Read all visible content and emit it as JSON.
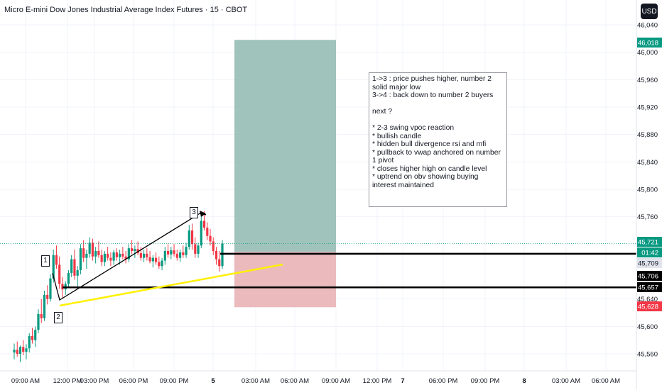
{
  "header": {
    "title": "Micro E-mini Dow Jones Industrial Average Index Futures · 15 · CBOT",
    "currency_button": "USD"
  },
  "chart_data": {
    "type": "candlestick",
    "symbol": "Micro E-mini Dow Jones Industrial Average Index Futures",
    "interval": "15",
    "exchange": "CBOT",
    "currency": "USD",
    "y_axis": {
      "ticks": [
        "46,040",
        "46,000",
        "45,960",
        "45,920",
        "45,880",
        "45,840",
        "45,800",
        "45,760",
        "45,640",
        "45,600",
        "45,560"
      ],
      "range": [
        45545,
        46050
      ]
    },
    "x_axis": {
      "ticks": [
        "09:00 AM",
        "12:00 PM",
        "03:00 PM",
        "06:00 PM",
        "09:00 PM",
        "5",
        "03:00 AM",
        "06:00 AM",
        "09:00 AM",
        "12:00 PM",
        "7",
        "06:00 PM",
        "09:00 PM",
        "8",
        "03:00 AM",
        "06:00 AM"
      ]
    },
    "price_tags": [
      {
        "value": "46,018",
        "color": "#089981",
        "text_color": "#ffffff"
      },
      {
        "value": "45,721",
        "color": "#089981",
        "text_color": "#ffffff"
      },
      {
        "value": "01:42",
        "color": "#089981",
        "text_color": "#ffffff"
      },
      {
        "value": "45,709",
        "color": "#e0e3eb",
        "text_color": "#131722"
      },
      {
        "value": "45,706",
        "color": "#000000",
        "text_color": "#ffffff"
      },
      {
        "value": "45,657",
        "color": "#000000",
        "text_color": "#ffffff"
      },
      {
        "value": "45,628",
        "color": "#f23645",
        "text_color": "#ffffff"
      }
    ],
    "current_price": 45721,
    "horizontal_levels": [
      45706,
      45657
    ],
    "position": {
      "target": 46018,
      "entry": 45709,
      "stop": 45628
    },
    "candles": [
      [
        45562,
        45575,
        45552,
        45566
      ],
      [
        45566,
        45578,
        45556,
        45560
      ],
      [
        45560,
        45572,
        45548,
        45570
      ],
      [
        45570,
        45580,
        45558,
        45563
      ],
      [
        45563,
        45574,
        45552,
        45568
      ],
      [
        45568,
        45590,
        45562,
        45586
      ],
      [
        45586,
        45598,
        45575,
        45580
      ],
      [
        45580,
        45600,
        45570,
        45595
      ],
      [
        45595,
        45625,
        45590,
        45618
      ],
      [
        45618,
        45640,
        45605,
        45612
      ],
      [
        45612,
        45652,
        45608,
        45646
      ],
      [
        45646,
        45660,
        45632,
        45640
      ],
      [
        45640,
        45676,
        45636,
        45670
      ],
      [
        45670,
        45712,
        45664,
        45704
      ],
      [
        45704,
        45718,
        45684,
        45690
      ],
      [
        45690,
        45702,
        45655,
        45662
      ],
      [
        45662,
        45672,
        45642,
        45654
      ],
      [
        45654,
        45666,
        45646,
        45662
      ],
      [
        45662,
        45682,
        45656,
        45678
      ],
      [
        45678,
        45704,
        45672,
        45698
      ],
      [
        45698,
        45712,
        45668,
        45674
      ],
      [
        45674,
        45688,
        45658,
        45682
      ],
      [
        45682,
        45720,
        45676,
        45714
      ],
      [
        45714,
        45726,
        45694,
        45700
      ],
      [
        45700,
        45712,
        45684,
        45706
      ],
      [
        45706,
        45730,
        45700,
        45722
      ],
      [
        45722,
        45728,
        45696,
        45702
      ],
      [
        45702,
        45716,
        45692,
        45710
      ],
      [
        45710,
        45724,
        45700,
        45704
      ],
      [
        45704,
        45712,
        45688,
        45694
      ],
      [
        45694,
        45710,
        45688,
        45706
      ],
      [
        45706,
        45716,
        45696,
        45700
      ],
      [
        45700,
        45708,
        45688,
        45696
      ],
      [
        45696,
        45712,
        45690,
        45708
      ],
      [
        45708,
        45714,
        45696,
        45701
      ],
      [
        45701,
        45712,
        45690,
        45706
      ],
      [
        45706,
        45716,
        45698,
        45702
      ],
      [
        45702,
        45710,
        45692,
        45698
      ],
      [
        45698,
        45720,
        45694,
        45714
      ],
      [
        45714,
        45726,
        45706,
        45710
      ],
      [
        45710,
        45718,
        45700,
        45713
      ],
      [
        45713,
        45724,
        45704,
        45707
      ],
      [
        45707,
        45716,
        45696,
        45700
      ],
      [
        45700,
        45712,
        45694,
        45706
      ],
      [
        45706,
        45714,
        45696,
        45701
      ],
      [
        45701,
        45710,
        45692,
        45695
      ],
      [
        45695,
        45704,
        45686,
        45700
      ],
      [
        45700,
        45708,
        45690,
        45694
      ],
      [
        45694,
        45702,
        45684,
        45688
      ],
      [
        45688,
        45700,
        45682,
        45696
      ],
      [
        45696,
        45716,
        45690,
        45710
      ],
      [
        45710,
        45720,
        45700,
        45705
      ],
      [
        45705,
        45716,
        45698,
        45711
      ],
      [
        45711,
        45720,
        45702,
        45706
      ],
      [
        45706,
        45712,
        45696,
        45700
      ],
      [
        45700,
        45712,
        45694,
        45708
      ],
      [
        45708,
        45718,
        45700,
        45704
      ],
      [
        45704,
        45722,
        45700,
        45716
      ],
      [
        45716,
        45748,
        45712,
        45740
      ],
      [
        45740,
        45750,
        45712,
        45720
      ],
      [
        45720,
        45730,
        45700,
        45706
      ],
      [
        45706,
        45722,
        45700,
        45718
      ],
      [
        45718,
        45760,
        45714,
        45754
      ],
      [
        45754,
        45768,
        45740,
        45744
      ],
      [
        45744,
        45752,
        45726,
        45732
      ],
      [
        45732,
        45742,
        45718,
        45724
      ],
      [
        45724,
        45730,
        45704,
        45710
      ],
      [
        45710,
        45716,
        45690,
        45698
      ],
      [
        45698,
        45710,
        45680,
        45688
      ],
      [
        45688,
        45726,
        45684,
        45721
      ]
    ]
  },
  "annotations": {
    "labels": [
      "1",
      "2",
      "3"
    ],
    "note_lines": [
      "1->3 : price pushes higher, number 2 solid major low",
      "3->4 : back down to number 2 buyers",
      "",
      "next ?",
      "",
      "* 2-3 swing vpoc reaction",
      "* bullish candle",
      "* hidden bull divergence rsi and mfi",
      "* pullback to vwap anchored on number 1 pivot",
      "* closes higher high on candle level",
      "* uptrend on obv showing buying interest maintained"
    ]
  },
  "colors": {
    "up": "#089981",
    "down": "#f23645",
    "target_zone": "#8fb9b0",
    "stop_zone": "#e8b3b6",
    "trendline": "#fff000",
    "level_line": "#000000"
  }
}
